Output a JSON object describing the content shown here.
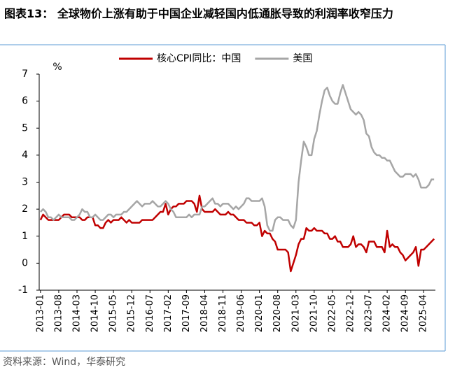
{
  "chart_data": {
    "type": "line",
    "title": "图表13：  全球物价上涨有助于中国企业减轻国内低通胀导致的利润率收窄压力",
    "y_unit": "%",
    "source": "资料来源：Wind，华泰研究",
    "categories": [
      "2013-01",
      null,
      null,
      null,
      null,
      null,
      null,
      "2013-08",
      null,
      null,
      null,
      null,
      null,
      null,
      "2014-03",
      null,
      null,
      null,
      null,
      null,
      null,
      "2014-10",
      null,
      null,
      null,
      null,
      null,
      null,
      "2015-05",
      null,
      null,
      null,
      null,
      null,
      null,
      "2015-12",
      null,
      null,
      null,
      null,
      null,
      null,
      "2016-07",
      null,
      null,
      null,
      null,
      null,
      null,
      "2017-02",
      null,
      null,
      null,
      null,
      null,
      null,
      "2017-09",
      null,
      null,
      null,
      null,
      null,
      null,
      "2018-04",
      null,
      null,
      null,
      null,
      null,
      null,
      "2018-11",
      null,
      null,
      null,
      null,
      null,
      null,
      "2019-06",
      null,
      null,
      null,
      null,
      null,
      null,
      "2020-01",
      null,
      null,
      null,
      null,
      null,
      null,
      "2020-08",
      null,
      null,
      null,
      null,
      null,
      null,
      "2021-03",
      null,
      null,
      null,
      null,
      null,
      null,
      "2021-10",
      null,
      null,
      null,
      null,
      null,
      null,
      "2022-05",
      null,
      null,
      null,
      null,
      null,
      null,
      "2022-12",
      null,
      null,
      null,
      null,
      null,
      null,
      "2023-07",
      null,
      null,
      null,
      null,
      null,
      null,
      "2024-02",
      null,
      null,
      null,
      null,
      null,
      null,
      "2024-09",
      null,
      null,
      null,
      null,
      null,
      null,
      "2025-04",
      null,
      null,
      null,
      null
    ],
    "series": [
      {
        "name": "核心CPI同比：中国",
        "color": "#c00000",
        "values": [
          1.6,
          1.8,
          1.7,
          1.6,
          1.6,
          1.6,
          1.6,
          1.6,
          1.7,
          1.8,
          1.8,
          1.8,
          1.7,
          1.7,
          1.7,
          1.7,
          1.6,
          1.6,
          1.7,
          1.7,
          1.7,
          1.4,
          1.4,
          1.3,
          1.3,
          1.5,
          1.6,
          1.5,
          1.6,
          1.6,
          1.6,
          1.7,
          1.6,
          1.5,
          1.6,
          1.5,
          1.5,
          1.5,
          1.5,
          1.6,
          1.6,
          1.6,
          1.6,
          1.6,
          1.7,
          1.8,
          1.9,
          1.9,
          2.2,
          1.8,
          2.0,
          2.1,
          2.1,
          2.2,
          2.2,
          2.2,
          2.3,
          2.3,
          2.3,
          2.2,
          1.9,
          2.5,
          2.0,
          1.9,
          1.9,
          1.9,
          1.9,
          2.0,
          1.9,
          1.8,
          1.8,
          1.8,
          1.9,
          1.8,
          1.8,
          1.7,
          1.6,
          1.6,
          1.6,
          1.5,
          1.5,
          1.5,
          1.4,
          1.4,
          1.5,
          1.0,
          1.2,
          1.1,
          1.1,
          0.9,
          0.8,
          0.5,
          0.5,
          0.5,
          0.5,
          0.4,
          -0.3,
          0.0,
          0.3,
          0.7,
          0.9,
          0.9,
          1.3,
          1.2,
          1.2,
          1.3,
          1.2,
          1.2,
          1.2,
          1.1,
          1.1,
          0.9,
          0.9,
          1.0,
          0.8,
          0.8,
          0.6,
          0.6,
          0.6,
          0.7,
          1.0,
          0.6,
          0.7,
          0.7,
          0.6,
          0.4,
          0.8,
          0.8,
          0.8,
          0.6,
          0.6,
          0.6,
          0.4,
          1.2,
          0.6,
          0.7,
          0.6,
          0.6,
          0.4,
          0.3,
          0.1,
          0.2,
          0.3,
          0.4,
          0.6,
          -0.1,
          0.5,
          0.5,
          0.6,
          0.7,
          0.8,
          0.9
        ]
      },
      {
        "name": "美国",
        "color": "#a6a6a6",
        "values": [
          1.9,
          2.0,
          1.9,
          1.7,
          1.7,
          1.6,
          1.7,
          1.8,
          1.7,
          1.7,
          1.7,
          1.7,
          1.6,
          1.6,
          1.7,
          1.8,
          2.0,
          1.9,
          1.9,
          1.7,
          1.7,
          1.8,
          1.7,
          1.6,
          1.6,
          1.7,
          1.8,
          1.8,
          1.7,
          1.8,
          1.8,
          1.8,
          1.9,
          1.9,
          2.0,
          2.1,
          2.2,
          2.3,
          2.2,
          2.1,
          2.2,
          2.2,
          2.2,
          2.3,
          2.2,
          2.1,
          2.1,
          2.2,
          2.3,
          2.2,
          2.0,
          1.9,
          1.7,
          1.7,
          1.7,
          1.7,
          1.7,
          1.8,
          1.7,
          1.8,
          1.8,
          1.8,
          2.1,
          2.1,
          2.2,
          2.3,
          2.4,
          2.2,
          2.2,
          2.1,
          2.2,
          2.2,
          2.2,
          2.1,
          2.0,
          2.1,
          2.0,
          2.1,
          2.2,
          2.4,
          2.4,
          2.3,
          2.3,
          2.3,
          2.3,
          2.4,
          2.1,
          1.4,
          1.2,
          1.2,
          1.6,
          1.7,
          1.7,
          1.6,
          1.6,
          1.6,
          1.4,
          1.3,
          1.6,
          3.0,
          3.8,
          4.5,
          4.3,
          4.0,
          4.0,
          4.6,
          4.9,
          5.5,
          6.0,
          6.4,
          6.5,
          6.2,
          6.0,
          5.9,
          5.9,
          6.3,
          6.6,
          6.3,
          6.0,
          5.7,
          5.6,
          5.5,
          5.6,
          5.5,
          5.3,
          4.8,
          4.7,
          4.3,
          4.1,
          4.0,
          4.0,
          3.9,
          3.9,
          3.8,
          3.8,
          3.6,
          3.4,
          3.3,
          3.2,
          3.2,
          3.3,
          3.3,
          3.3,
          3.2,
          3.3,
          3.1,
          2.8,
          2.8,
          2.8,
          2.9,
          3.1,
          3.1
        ]
      }
    ],
    "ylim": [
      -1,
      7
    ],
    "yticks": [
      -1,
      0,
      1,
      2,
      3,
      4,
      5,
      6,
      7
    ],
    "grid": false,
    "legend": "top"
  }
}
